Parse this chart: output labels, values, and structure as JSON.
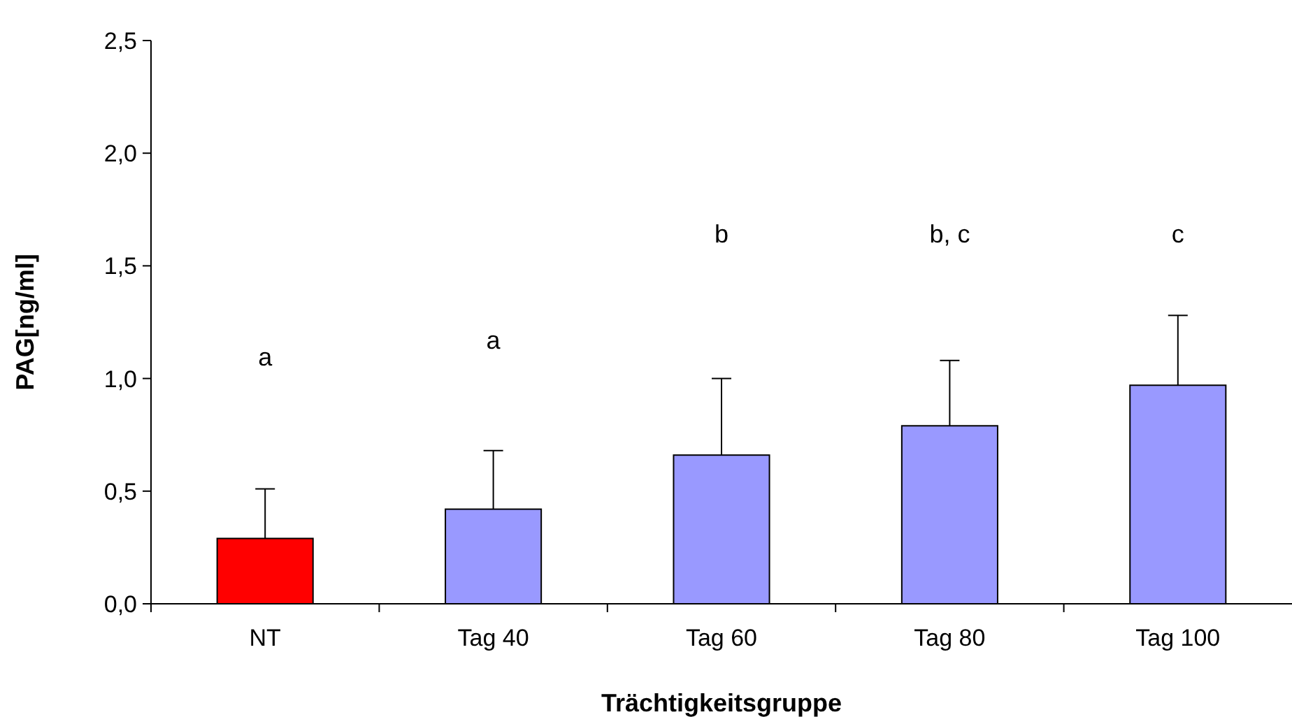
{
  "chart_data": {
    "type": "bar",
    "xlabel": "Trächtigkeitsgruppe",
    "ylabel": "PAG[ng/ml]",
    "categories": [
      "NT",
      "Tag 40",
      "Tag 60",
      "Tag 80",
      "Tag 100"
    ],
    "values": [
      0.29,
      0.42,
      0.66,
      0.79,
      0.97
    ],
    "colors": [
      "#ff0000",
      "#9999ff",
      "#9999ff",
      "#9999ff",
      "#9999ff"
    ],
    "errors": [
      [
        0.29,
        0.51
      ],
      [
        0.42,
        0.68
      ],
      [
        0.66,
        1.0
      ],
      [
        0.79,
        1.08
      ],
      [
        0.97,
        1.28
      ]
    ],
    "ylim": [
      0,
      2.5
    ],
    "yticks": [
      {
        "value": 0,
        "label": "0,0"
      },
      {
        "value": 0.5,
        "label": "0,5"
      },
      {
        "value": 1,
        "label": "1,0"
      },
      {
        "value": 1.5,
        "label": "1,5"
      },
      {
        "value": 2,
        "label": "2,0"
      },
      {
        "value": 2.5,
        "label": "2,5"
      }
    ],
    "annotations": [
      "a",
      "a",
      "b",
      "b, c",
      "c"
    ],
    "grid": false
  }
}
